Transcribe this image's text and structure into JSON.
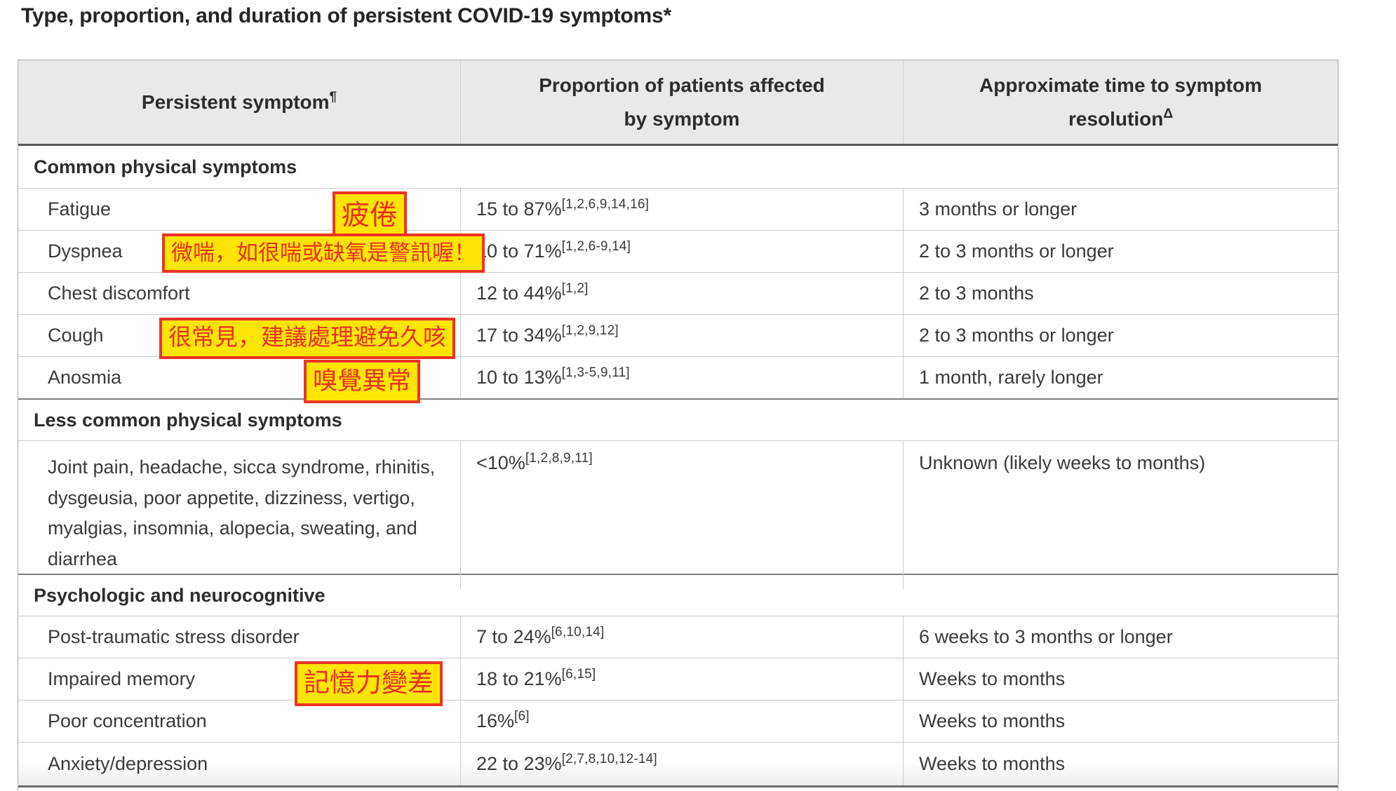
{
  "page": {
    "title": "Type, proportion, and duration of persistent COVID-19 symptoms*"
  },
  "style": {
    "annotation_bg": "#ffe505",
    "annotation_border": "#ee3424",
    "annotation_text": "#e93020",
    "header_bg": "#e9e9e9"
  },
  "table": {
    "headers": [
      {
        "text": "Persistent symptom",
        "sup": "¶"
      },
      {
        "text": "Proportion of patients affected by symptom",
        "sup": ""
      },
      {
        "text": "Approximate time to symptom resolution",
        "sup": "Δ"
      }
    ],
    "sections": [
      {
        "label": "Common physical symptoms",
        "rows": [
          {
            "symptom": "Fatigue",
            "annotation": "疲倦",
            "proportion": "15 to 87%",
            "refs": "[1,2,6,9,14,16]",
            "resolution": "3 months or longer"
          },
          {
            "symptom": "Dyspnea",
            "annotation": "微喘，如很喘或缺氧是警訊喔！",
            "proportion": "10 to 71%",
            "refs": "[1,2,6-9,14]",
            "resolution": "2 to 3 months or longer"
          },
          {
            "symptom": "Chest discomfort",
            "annotation": "",
            "proportion": "12 to 44%",
            "refs": "[1,2]",
            "resolution": "2 to 3 months"
          },
          {
            "symptom": "Cough",
            "annotation": "很常見，建議處理避免久咳",
            "proportion": "17 to 34%",
            "refs": "[1,2,9,12]",
            "resolution": "2 to 3 months or longer"
          },
          {
            "symptom": "Anosmia",
            "annotation": "嗅覺異常",
            "proportion": "10 to 13%",
            "refs": "[1,3-5,9,11]",
            "resolution": "1 month, rarely longer"
          }
        ]
      },
      {
        "label": "Less common physical symptoms",
        "rows": [
          {
            "symptom": "Joint pain, headache, sicca syndrome, rhinitis, dysgeusia, poor appetite, dizziness, vertigo, myalgias, insomnia, alopecia, sweating, and diarrhea",
            "annotation": "",
            "proportion": "<10%",
            "refs": "[1,2,8,9,11]",
            "resolution": "Unknown (likely weeks to months)"
          }
        ]
      },
      {
        "label": "Psychologic and neurocognitive",
        "rows": [
          {
            "symptom": "Post-traumatic stress disorder",
            "annotation": "",
            "proportion": "7 to 24%",
            "refs": "[6,10,14]",
            "resolution": "6 weeks to 3 months or longer"
          },
          {
            "symptom": "Impaired memory",
            "annotation": "記憶力變差",
            "proportion": "18 to 21%",
            "refs": "[6,15]",
            "resolution": "Weeks to months"
          },
          {
            "symptom": "Poor concentration",
            "annotation": "",
            "proportion": "16%",
            "refs": "[6]",
            "resolution": "Weeks to months"
          },
          {
            "symptom": "Anxiety/depression",
            "annotation": "",
            "proportion": "22 to 23%",
            "refs": "[2,7,8,10,12-14]",
            "resolution": "Weeks to months"
          }
        ]
      }
    ]
  }
}
